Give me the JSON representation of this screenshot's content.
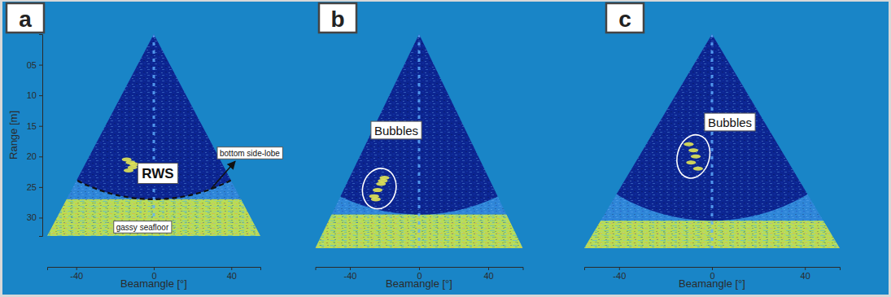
{
  "chart_data": [
    {
      "type": "sonar_fan",
      "panel_label": "a",
      "xlabel": "Beamangle [°]",
      "ylabel": "Range [m]",
      "xlim": [
        -55,
        55
      ],
      "xticks": [
        -40,
        0,
        40
      ],
      "ylim": [
        0,
        33
      ],
      "yticks": [
        {
          "value": 5,
          "label": "05"
        },
        10,
        15,
        20,
        25,
        30
      ],
      "seafloor_range": 27,
      "echoes": {
        "beam_angle": [
          -14,
          -12,
          -11,
          -13,
          -10
        ],
        "range": [
          20.5,
          21,
          21.8,
          22.3,
          21.3
        ]
      },
      "annotations": [
        "RWS",
        "bottom side-lobe",
        "gassy seafloor"
      ]
    },
    {
      "type": "sonar_fan",
      "panel_label": "b",
      "xlabel": "Beamangle [°]",
      "xlim": [
        -60,
        60
      ],
      "xticks": [
        -40,
        0,
        40
      ],
      "ylim": [
        0,
        35
      ],
      "tick_labels": "x",
      "seafloor_range": 29.5,
      "echoes": {
        "beam_angle": [
          -20,
          -22,
          -24,
          -26,
          -21,
          -25
        ],
        "range": [
          23.5,
          24.5,
          25.5,
          26.5,
          24,
          27
        ]
      },
      "annotations": [
        "Bubbles"
      ]
    },
    {
      "type": "sonar_fan",
      "panel_label": "c",
      "xlabel": "Beamangle [°]",
      "xlim": [
        -55,
        55
      ],
      "xticks": [
        -40,
        0,
        40
      ],
      "ylim": [
        0,
        35
      ],
      "tick_labels": "x",
      "seafloor_range": 30.5,
      "echoes": {
        "beam_angle": [
          -10,
          -8,
          -7,
          -9,
          -6
        ],
        "range": [
          18,
          19,
          20,
          21,
          22
        ]
      },
      "annotations": [
        "Bubbles"
      ]
    }
  ]
}
